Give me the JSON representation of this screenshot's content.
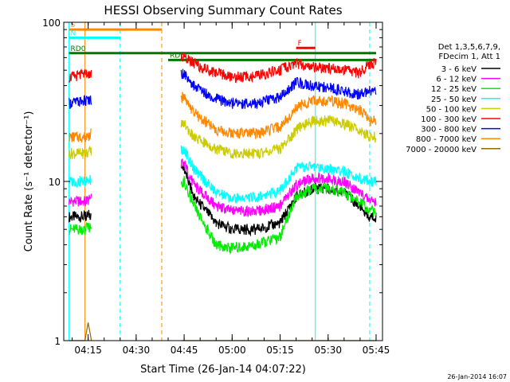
{
  "chart_data": {
    "type": "line",
    "title": "HESSI Observing Summary Count Rates",
    "xlabel": "Start Time (26-Jan-14 04:07:22)",
    "ylabel": "Count Rate (s⁻¹ detector⁻¹)",
    "yscale": "log",
    "ylim": [
      1,
      100
    ],
    "xlim": [
      "04:07:22",
      "05:47:00"
    ],
    "x_ticks": [
      "04:15",
      "04:30",
      "04:45",
      "05:00",
      "05:15",
      "05:30",
      "05:45"
    ],
    "y_ticks": [
      "1",
      "10",
      "100"
    ],
    "footer_date": "26-Jan-2014 16:07",
    "legend": {
      "placement": "right",
      "header": [
        "Det 1,3,5,6,7,9,",
        "FDecim 1, Att 1"
      ]
    },
    "series": [
      {
        "name": "3 - 6 keV",
        "color": "#000000",
        "x": [
          "04:09",
          "04:14",
          "04:45",
          "04:48",
          "04:55",
          "05:00",
          "05:08",
          "05:15",
          "05:20",
          "05:25",
          "05:30",
          "05:35",
          "05:40",
          "05:43",
          "05:45"
        ],
        "y": [
          6,
          6,
          12,
          8,
          5.5,
          5,
          5,
          5.5,
          8,
          9,
          9,
          8.5,
          7,
          6,
          6
        ]
      },
      {
        "name": "6 - 12 keV",
        "color": "#ff00ff",
        "x": [
          "04:09",
          "04:14",
          "04:45",
          "04:48",
          "04:55",
          "05:00",
          "05:08",
          "05:15",
          "05:20",
          "05:25",
          "05:30",
          "05:35",
          "05:40",
          "05:43",
          "05:45"
        ],
        "y": [
          7.5,
          7.5,
          13,
          9.5,
          7,
          6.5,
          6.5,
          7,
          9.5,
          10.5,
          10.5,
          10,
          8.5,
          7.5,
          7.5
        ]
      },
      {
        "name": "12 - 25 keV",
        "color": "#00ee00",
        "x": [
          "04:09",
          "04:14",
          "04:45",
          "04:48",
          "04:55",
          "05:00",
          "05:08",
          "05:15",
          "05:20",
          "05:25",
          "05:30",
          "05:35",
          "05:40",
          "05:43",
          "05:45"
        ],
        "y": [
          5,
          5,
          10,
          7,
          4,
          3.8,
          4,
          4.5,
          8,
          9,
          9,
          8.5,
          7.5,
          6.5,
          6.5
        ]
      },
      {
        "name": "25 - 50 keV",
        "color": "#00ffff",
        "x": [
          "04:09",
          "04:14",
          "04:45",
          "04:48",
          "04:55",
          "05:00",
          "05:08",
          "05:15",
          "05:20",
          "05:25",
          "05:30",
          "05:35",
          "05:40",
          "05:43",
          "05:45"
        ],
        "y": [
          10,
          10,
          16,
          12,
          8.5,
          7.8,
          8,
          8.8,
          12,
          12.5,
          12,
          11.5,
          10.5,
          10,
          10
        ]
      },
      {
        "name": "50 - 100 keV",
        "color": "#cccc00",
        "x": [
          "04:09",
          "04:14",
          "04:45",
          "04:48",
          "04:55",
          "05:00",
          "05:08",
          "05:15",
          "05:20",
          "05:25",
          "05:30",
          "05:35",
          "05:40",
          "05:43",
          "05:45"
        ],
        "y": [
          15,
          15,
          23,
          19,
          16,
          15,
          15,
          16,
          21,
          24,
          24,
          23,
          21,
          19,
          19
        ]
      },
      {
        "name": "100 - 300 keV",
        "color": "#ff0000",
        "x": [
          "04:09",
          "04:14",
          "04:45",
          "04:48",
          "04:55",
          "05:00",
          "05:08",
          "05:15",
          "05:20",
          "05:25",
          "05:30",
          "05:35",
          "05:40",
          "05:43",
          "05:45"
        ],
        "y": [
          45,
          47,
          60,
          55,
          48,
          45,
          46,
          50,
          55,
          52,
          51,
          50,
          48,
          55,
          55
        ]
      },
      {
        "name": "300 - 800 keV",
        "color": "#0000ff",
        "x": [
          "04:09",
          "04:14",
          "04:45",
          "04:48",
          "04:55",
          "05:00",
          "05:08",
          "05:15",
          "05:20",
          "05:25",
          "05:30",
          "05:35",
          "05:40",
          "05:43",
          "05:45"
        ],
        "y": [
          31,
          32,
          48,
          40,
          33,
          31,
          31,
          34,
          42,
          40,
          39,
          37,
          35,
          37,
          37
        ]
      },
      {
        "name": "800 - 7000 keV",
        "color": "#ff8800",
        "x": [
          "04:09",
          "04:14",
          "04:45",
          "04:48",
          "04:55",
          "05:00",
          "05:08",
          "05:15",
          "05:20",
          "05:25",
          "05:30",
          "05:35",
          "05:40",
          "05:43",
          "05:45"
        ],
        "y": [
          19,
          19,
          34,
          27,
          21,
          20,
          20,
          22,
          29,
          32,
          32,
          31,
          28,
          24,
          24
        ]
      },
      {
        "name": "7000 - 20000 keV",
        "color": "#996600",
        "x": [
          "04:09",
          "04:14",
          "04:15",
          "04:16",
          "05:45"
        ],
        "y": [
          1,
          1,
          1.3,
          1,
          1
        ]
      }
    ],
    "annotations": [
      {
        "label": "S",
        "color": "#ff8800",
        "x_start": "04:09",
        "x_end": "04:38",
        "y": 90
      },
      {
        "label": "N",
        "color": "#00ffff",
        "x_start": "04:09",
        "x_end": "04:25",
        "y": 80
      },
      {
        "label": "RD0",
        "color": "#007700",
        "x_start": "04:09",
        "x_end": "05:45",
        "y": 64
      },
      {
        "label": "RD6",
        "color": "#007700",
        "x_start": "04:40",
        "x_end": "05:45",
        "y": 58
      },
      {
        "label": "F",
        "color": "#ff0000",
        "x_start": "05:20",
        "x_end": "05:26",
        "y": 69
      }
    ],
    "vertical_lines": [
      {
        "x": "04:09",
        "color": "#00ffff",
        "style": "solid"
      },
      {
        "x": "04:14",
        "color": "#ff8800",
        "style": "solid"
      },
      {
        "x": "04:25",
        "color": "#00ffff",
        "style": "dashed"
      },
      {
        "x": "04:38",
        "color": "#ff8800",
        "style": "dashed"
      },
      {
        "x": "05:26",
        "color": "#00ffff",
        "style": "solid"
      },
      {
        "x": "05:43",
        "color": "#00ffff",
        "style": "dashed"
      }
    ],
    "gaps": [
      [
        "04:16",
        "04:44"
      ]
    ]
  }
}
